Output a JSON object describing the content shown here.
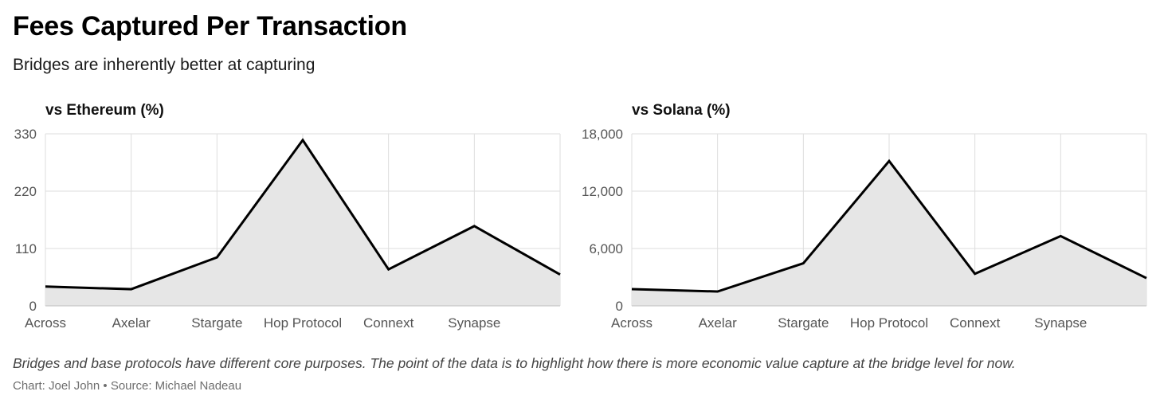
{
  "header": {
    "title": "Fees Captured Per Transaction",
    "subtitle": "Bridges are inherently better at capturing"
  },
  "footer": {
    "note": "Bridges and base protocols have different core purposes. The point of the data is to highlight how there is more economic value capture at the bridge level for now.",
    "credit": "Chart: Joel John • Source: Michael Nadeau"
  },
  "colors": {
    "line": "#000000",
    "fill": "#e6e6e6",
    "grid": "#dddddd"
  },
  "chart_data": [
    {
      "type": "area",
      "title": "vs Ethereum (%)",
      "categories": [
        "Across",
        "Axelar",
        "Stargate",
        "Hop Protocol",
        "Connext",
        "Synapse",
        ""
      ],
      "values": [
        37,
        32,
        93,
        318,
        70,
        153,
        60
      ],
      "yticks": [
        0,
        110,
        220,
        330
      ],
      "ytick_labels": [
        "0",
        "110",
        "220",
        "330"
      ],
      "ylim": [
        0,
        330
      ],
      "xlabel": "",
      "ylabel": "",
      "grid": true
    },
    {
      "type": "area",
      "title": "vs Solana (%)",
      "categories": [
        "Across",
        "Axelar",
        "Stargate",
        "Hop Protocol",
        "Connext",
        "Synapse",
        ""
      ],
      "values": [
        1750,
        1500,
        4450,
        15150,
        3350,
        7300,
        2900
      ],
      "yticks": [
        0,
        6000,
        12000,
        18000
      ],
      "ytick_labels": [
        "0",
        "6,000",
        "12,000",
        "18,000"
      ],
      "ylim": [
        0,
        18000
      ],
      "xlabel": "",
      "ylabel": "",
      "grid": true
    }
  ]
}
